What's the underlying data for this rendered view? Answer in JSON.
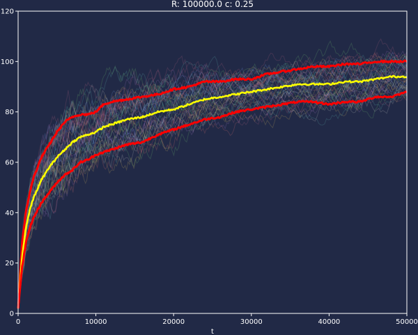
{
  "chart_data": {
    "type": "line",
    "title": "R: 100000.0   c: 0.25",
    "xlabel": "t",
    "ylabel": "",
    "xlim": [
      0,
      50000
    ],
    "ylim": [
      0,
      120
    ],
    "xticks": [
      0,
      10000,
      20000,
      30000,
      40000,
      50000
    ],
    "yticks": [
      0,
      20,
      40,
      60,
      80,
      100,
      120
    ],
    "xtick_labels": [
      "0",
      "10000",
      "20000",
      "30000",
      "40000",
      "50000"
    ],
    "ytick_labels": [
      "0",
      "20",
      "40",
      "60",
      "80",
      "100",
      "120"
    ],
    "grid": false,
    "legend": "none",
    "colors": {
      "background": "#212946",
      "axis": "#ffffff",
      "mean": "#ffff00",
      "band": "#ff0000",
      "trajectories": [
        "#e07070",
        "#70c070",
        "#7090e0",
        "#d0b060",
        "#a070c0",
        "#60b0b0",
        "#c0c0c0",
        "#b06080"
      ]
    },
    "trajectory_count": 40,
    "series": [
      {
        "role": "upper",
        "x": [
          0,
          500,
          1000,
          1500,
          2000,
          3000,
          4000,
          5000,
          6000,
          7000,
          8000,
          9000,
          10000,
          11000,
          12000,
          14000,
          16000,
          18000,
          20000,
          22000,
          24000,
          26000,
          28000,
          30000,
          32000,
          34000,
          36000,
          38000,
          40000,
          42000,
          44000,
          46000,
          48000,
          50000
        ],
        "values": [
          2,
          28,
          40,
          48,
          54,
          62,
          67,
          72,
          76,
          78,
          79,
          79,
          80,
          83,
          84,
          85,
          86,
          87,
          89,
          90,
          92,
          92,
          93,
          93,
          95,
          96,
          97,
          98,
          98,
          99,
          99,
          100,
          100,
          100
        ]
      },
      {
        "role": "mean",
        "x": [
          0,
          500,
          1000,
          1500,
          2000,
          3000,
          4000,
          5000,
          6000,
          7000,
          8000,
          9000,
          10000,
          11000,
          12000,
          14000,
          16000,
          18000,
          20000,
          22000,
          24000,
          26000,
          28000,
          30000,
          32000,
          34000,
          36000,
          38000,
          40000,
          42000,
          44000,
          46000,
          48000,
          50000
        ],
        "values": [
          2,
          22,
          34,
          41,
          46,
          53,
          58,
          62,
          65,
          68,
          70,
          71,
          72,
          74,
          75,
          77,
          78,
          80,
          81,
          83,
          85,
          86,
          87,
          88,
          89,
          90,
          91,
          91,
          91,
          92,
          92,
          93,
          94,
          94
        ]
      },
      {
        "role": "lower",
        "x": [
          0,
          500,
          1000,
          1500,
          2000,
          3000,
          4000,
          5000,
          6000,
          7000,
          8000,
          9000,
          10000,
          11000,
          12000,
          14000,
          16000,
          18000,
          20000,
          22000,
          24000,
          26000,
          28000,
          30000,
          32000,
          34000,
          36000,
          38000,
          40000,
          42000,
          44000,
          46000,
          48000,
          50000
        ],
        "values": [
          2,
          18,
          28,
          34,
          38,
          44,
          48,
          52,
          55,
          57,
          60,
          61,
          63,
          64,
          65,
          67,
          68,
          71,
          73,
          75,
          77,
          78,
          80,
          81,
          82,
          83,
          84,
          84,
          83,
          84,
          84,
          86,
          86,
          88
        ]
      }
    ]
  }
}
